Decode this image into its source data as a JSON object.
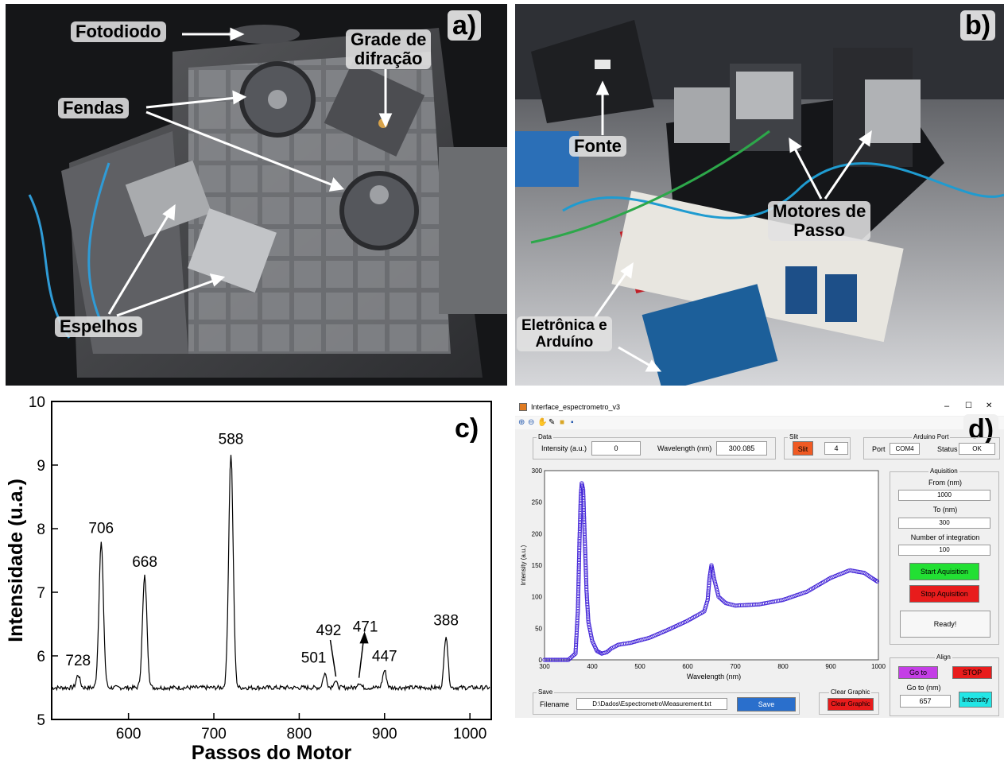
{
  "panel_a": {
    "letter": "a)",
    "labels": {
      "fotodiodo": "Fotodiodo",
      "grade_line1": "Grade de",
      "grade_line2": "difração",
      "fendas": "Fendas",
      "espelhos": "Espelhos"
    }
  },
  "panel_b": {
    "letter": "b)",
    "labels": {
      "fonte": "Fonte",
      "motores_line1": "Motores de",
      "motores_line2": "Passo",
      "eletronica_line1": "Eletrônica e",
      "eletronica_line2": "Arduíno"
    }
  },
  "panel_c": {
    "letter": "c)"
  },
  "chart_data": [
    {
      "type": "line",
      "title": "",
      "xlabel": "Passos do Motor",
      "ylabel": "Intensidade (u.a.)",
      "xlim": [
        510,
        1025
      ],
      "ylim": [
        5,
        10
      ],
      "xticks": [
        600,
        700,
        800,
        900,
        1000
      ],
      "yticks": [
        5,
        6,
        7,
        8,
        9,
        10
      ],
      "baseline": 5.5,
      "peaks": [
        {
          "x": 541,
          "y": 5.7,
          "label": "728"
        },
        {
          "x": 568,
          "y": 7.78,
          "label": "706"
        },
        {
          "x": 619,
          "y": 7.25,
          "label": "668"
        },
        {
          "x": 720,
          "y": 9.18,
          "label": "588"
        },
        {
          "x": 830,
          "y": 5.72,
          "label": "501"
        },
        {
          "x": 842,
          "y": 5.6,
          "label": "492"
        },
        {
          "x": 870,
          "y": 5.58,
          "label": "471"
        },
        {
          "x": 900,
          "y": 5.77,
          "label": "447"
        },
        {
          "x": 972,
          "y": 6.33,
          "label": "388"
        }
      ]
    },
    {
      "type": "scatter",
      "title": "",
      "xlabel": "Wavelength (nm)",
      "ylabel": "Intensity (a.u.)",
      "xlim": [
        300,
        1000
      ],
      "ylim": [
        0,
        300
      ],
      "xticks": [
        300,
        400,
        500,
        600,
        700,
        800,
        900,
        1000
      ],
      "yticks": [
        0,
        50,
        100,
        150,
        200,
        250,
        300
      ],
      "points": [
        [
          300,
          0
        ],
        [
          350,
          0
        ],
        [
          365,
          10
        ],
        [
          370,
          80
        ],
        [
          373,
          180
        ],
        [
          376,
          260
        ],
        [
          378,
          280
        ],
        [
          381,
          270
        ],
        [
          384,
          200
        ],
        [
          388,
          110
        ],
        [
          392,
          60
        ],
        [
          400,
          30
        ],
        [
          410,
          14
        ],
        [
          420,
          10
        ],
        [
          430,
          12
        ],
        [
          440,
          18
        ],
        [
          455,
          24
        ],
        [
          480,
          27
        ],
        [
          520,
          35
        ],
        [
          560,
          48
        ],
        [
          600,
          62
        ],
        [
          635,
          77
        ],
        [
          642,
          95
        ],
        [
          646,
          130
        ],
        [
          650,
          150
        ],
        [
          655,
          130
        ],
        [
          665,
          100
        ],
        [
          680,
          90
        ],
        [
          700,
          86
        ],
        [
          750,
          88
        ],
        [
          800,
          95
        ],
        [
          850,
          108
        ],
        [
          900,
          130
        ],
        [
          940,
          142
        ],
        [
          970,
          138
        ],
        [
          990,
          128
        ],
        [
          1000,
          123
        ]
      ],
      "color": "#3c1dd6"
    }
  ],
  "gui": {
    "window_title": "Interface_espectrometro_v3",
    "window_controls": {
      "minimize": "–",
      "maximize": "☐",
      "close": "✕"
    },
    "letter": "d)",
    "data_group": {
      "title": "Data",
      "intensity_label": "Intensity (a.u.)",
      "intensity_value": "0",
      "wavelength_label": "Wavelength (nm)",
      "wavelength_value": "300.085"
    },
    "slit_group": {
      "title": "Slit",
      "button": "Slit",
      "value": "4"
    },
    "arduino_group": {
      "title": "Arduino Port",
      "port_label": "Port",
      "port_value": "COM4",
      "status_label": "Status",
      "status_value": "OK"
    },
    "acquisition_group": {
      "title": "Aquisition",
      "from_label": "From (nm)",
      "from_value": "1000",
      "to_label": "To (nm)",
      "to_value": "300",
      "integration_label": "Number of integration",
      "integration_value": "100",
      "start_button": "Start Aquisition",
      "stop_button": "Stop Aquisition",
      "status_text": "Ready!"
    },
    "align_group": {
      "title": "Align",
      "goto_button": "Go to",
      "stop_button": "STOP",
      "goto_label": "Go to (nm)",
      "goto_value": "657",
      "intensity_button": "Intensity"
    },
    "save_group": {
      "title": "Save",
      "filename_label": "Filename",
      "filename_value": "D:\\Dados\\Espectrometro\\Measurement.txt",
      "save_button": "Save"
    },
    "clear_group": {
      "title": "Clear Graphic",
      "button": "Clear Graphic"
    },
    "colors": {
      "start": "#22e033",
      "stop": "#e81c1c",
      "goto": "#c43ee6",
      "intensity": "#22e6e6",
      "save": "#2a6fcc",
      "slit": "#f05a23",
      "clear": "#e81c1c"
    }
  }
}
